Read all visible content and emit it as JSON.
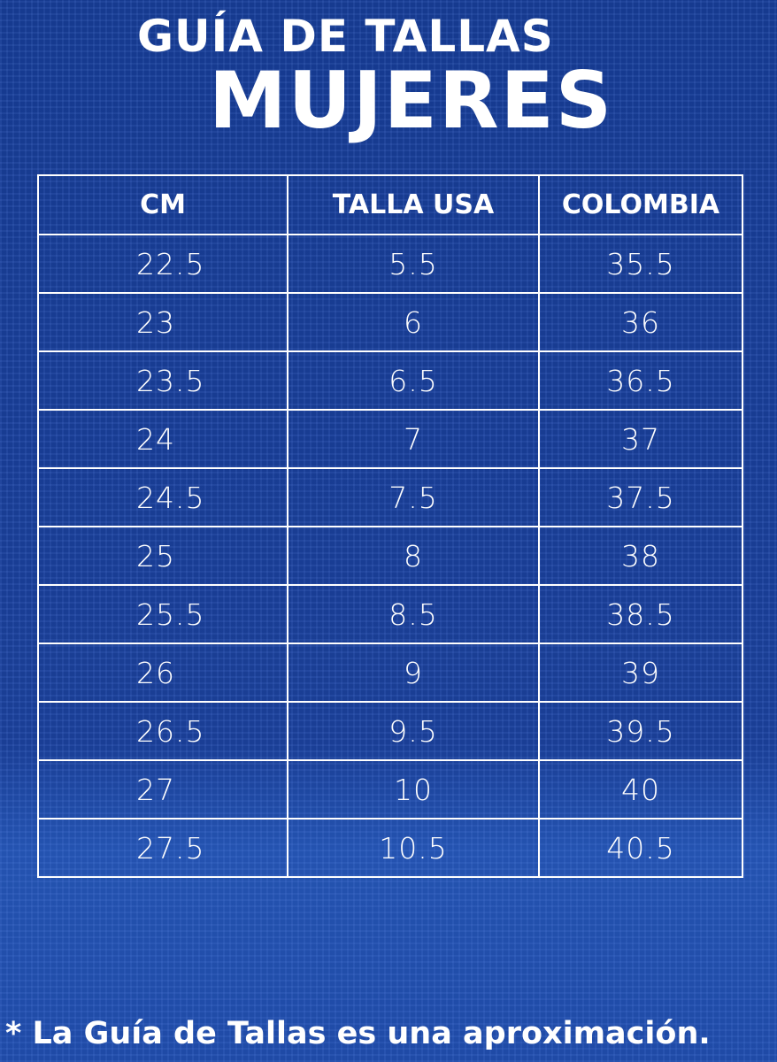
{
  "title": {
    "line1": "GUÍA DE TALLAS",
    "line2": "MUJERES"
  },
  "table": {
    "headers": [
      "CM",
      "TALLA USA",
      "COLOMBIA"
    ],
    "rows": [
      [
        "22.5",
        "5.5",
        "35.5"
      ],
      [
        "23",
        "6",
        "36"
      ],
      [
        "23.5",
        "6.5",
        "36.5"
      ],
      [
        "24",
        "7",
        "37"
      ],
      [
        "24.5",
        "7.5",
        "37.5"
      ],
      [
        "25",
        "8",
        "38"
      ],
      [
        "25.5",
        "8.5",
        "38.5"
      ],
      [
        "26",
        "9",
        "39"
      ],
      [
        "26.5",
        "9.5",
        "39.5"
      ],
      [
        "27",
        "10",
        "40"
      ],
      [
        "27.5",
        "10.5",
        "40.5"
      ]
    ]
  },
  "note": "* La Guía de Tallas es una aproximación.",
  "colors": {
    "background": "#1a3e95",
    "text": "#ffffff"
  }
}
